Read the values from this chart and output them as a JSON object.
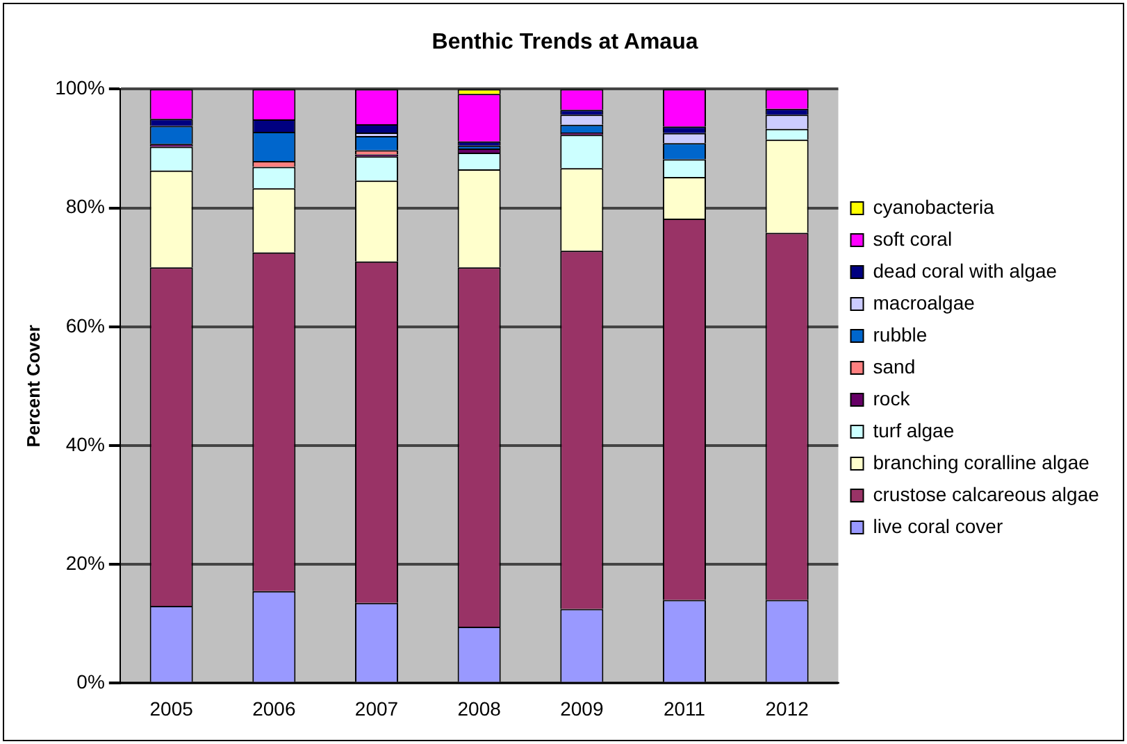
{
  "chart_data": {
    "type": "bar",
    "title": "Benthic Trends at Amaua",
    "ylabel": "Percent Cover",
    "stacked": true,
    "legend": "right",
    "grid": "y",
    "categories": [
      "2005",
      "2006",
      "2007",
      "2008",
      "2009",
      "2011",
      "2012"
    ],
    "ylim": [
      0,
      100
    ],
    "yticks": [
      {
        "value": 0,
        "label": "0%"
      },
      {
        "value": 20,
        "label": "20%"
      },
      {
        "value": 40,
        "label": "40%"
      },
      {
        "value": 60,
        "label": "60%"
      },
      {
        "value": 80,
        "label": "80%"
      },
      {
        "value": 100,
        "label": "100%"
      }
    ],
    "series": [
      {
        "name": "live coral cover",
        "color": "#9999ff",
        "values": [
          13,
          15.5,
          13.5,
          9.5,
          12.5,
          14,
          14
        ]
      },
      {
        "name": "crustose calcareous algae",
        "color": "#993366",
        "values": [
          57,
          57,
          57.5,
          60.5,
          60.3,
          64.2,
          61.8
        ]
      },
      {
        "name": "branching coralline algae",
        "color": "#ffffcc",
        "values": [
          16.3,
          10.8,
          13.6,
          16.5,
          13.9,
          7,
          15.7
        ]
      },
      {
        "name": "turf algae",
        "color": "#ccffff",
        "values": [
          4,
          3.6,
          4.1,
          2.8,
          5.6,
          3,
          1.8
        ]
      },
      {
        "name": "rock",
        "color": "#660066",
        "values": [
          0.5,
          0,
          0.3,
          0.7,
          0.4,
          0,
          0
        ]
      },
      {
        "name": "sand",
        "color": "#ff8080",
        "values": [
          0,
          1,
          0.7,
          0,
          0,
          0,
          0
        ]
      },
      {
        "name": "rubble",
        "color": "#0066cc",
        "values": [
          3,
          4.9,
          2.4,
          0.5,
          1.3,
          2.7,
          0
        ]
      },
      {
        "name": "macroalgae",
        "color": "#ccccff",
        "values": [
          0,
          0,
          0.6,
          0,
          1.7,
          1.7,
          2.4
        ]
      },
      {
        "name": "dead coral with algae",
        "color": "#000080",
        "values": [
          1.2,
          2.1,
          1.4,
          0.7,
          0.8,
          1.1,
          1
        ]
      },
      {
        "name": "soft coral",
        "color": "#ff00ff",
        "values": [
          5,
          5.1,
          5.9,
          8,
          3.5,
          6.3,
          3.3
        ]
      },
      {
        "name": "cyanobacteria",
        "color": "#ffff00",
        "values": [
          0,
          0,
          0,
          0.8,
          0,
          0,
          0
        ]
      }
    ]
  }
}
